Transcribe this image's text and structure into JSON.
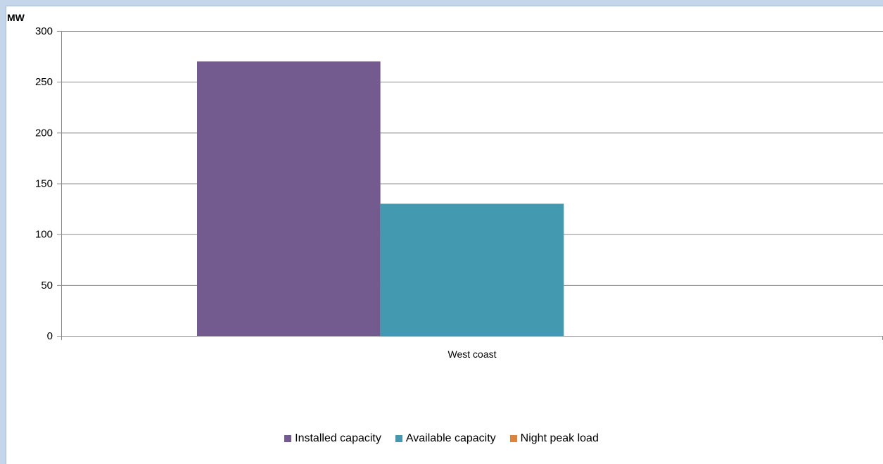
{
  "chart_data": {
    "type": "bar",
    "categories": [
      "West coast"
    ],
    "series": [
      {
        "name": "Installed capacity",
        "values": [
          270
        ],
        "color": "#735a8f"
      },
      {
        "name": "Available capacity",
        "values": [
          130
        ],
        "color": "#4299b0"
      },
      {
        "name": "Night peak load",
        "values": [
          0
        ],
        "color": "#e0823a"
      }
    ],
    "ylabel": "MW",
    "ylim": [
      0,
      300
    ],
    "yticks": [
      0,
      50,
      100,
      150,
      200,
      250,
      300
    ],
    "grid": true,
    "legend_position": "bottom"
  }
}
